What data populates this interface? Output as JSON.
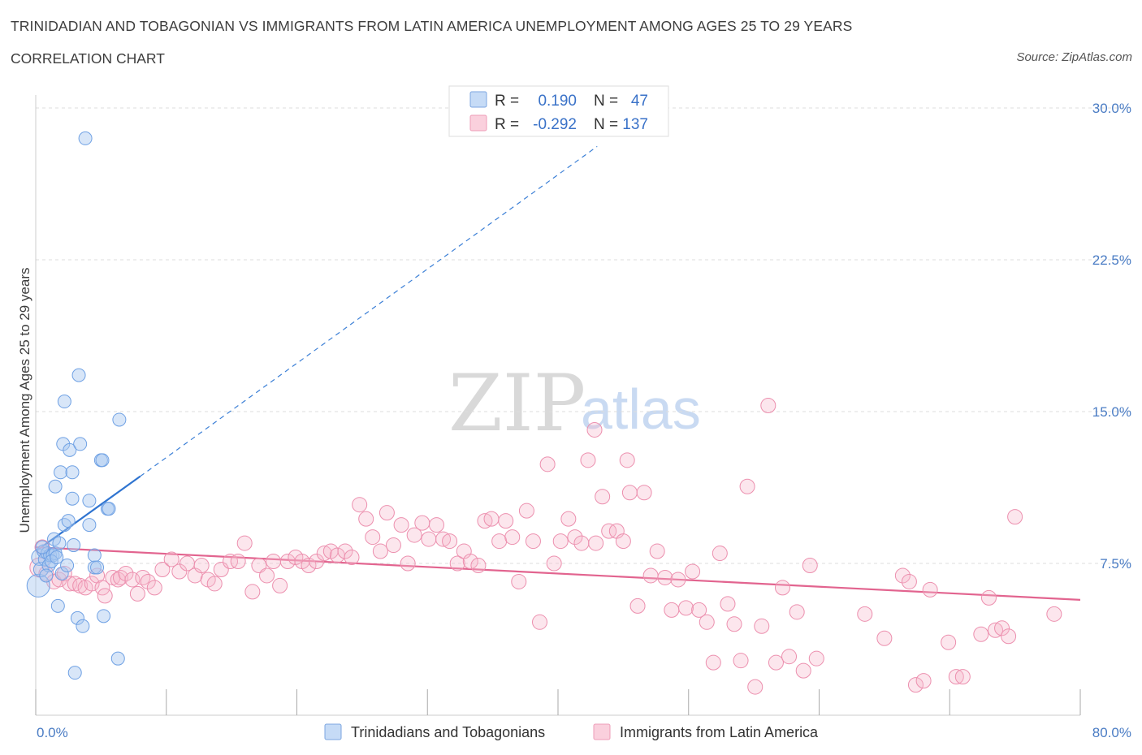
{
  "header": {
    "title": "TRINIDADIAN AND TOBAGONIAN VS IMMIGRANTS FROM LATIN AMERICA UNEMPLOYMENT AMONG AGES 25 TO 29 YEARS",
    "subtitle": "CORRELATION CHART",
    "source": "Source: ZipAtlas.com"
  },
  "watermark": {
    "zip": "ZIP",
    "atlas": "atlas"
  },
  "legend": {
    "rows": [
      {
        "r_label": "R =",
        "r_value": "0.190",
        "n_label": "N =",
        "n_value": "47",
        "color": "#a9c8f0"
      },
      {
        "r_label": "R =",
        "r_value": "-0.292",
        "n_label": "N =",
        "n_value": "137",
        "color": "#f6b8cb"
      }
    ]
  },
  "bottom_legend": [
    {
      "label": "Trinidadians and Tobagonians",
      "color": "#a9c8f0"
    },
    {
      "label": "Immigrants from Latin America",
      "color": "#f6b8cb"
    }
  ],
  "chart_data": {
    "type": "scatter",
    "title": "TRINIDADIAN AND TOBAGONIAN VS IMMIGRANTS FROM LATIN AMERICA UNEMPLOYMENT AMONG AGES 25 TO 29 YEARS",
    "xlabel": "",
    "ylabel": "Unemployment Among Ages 25 to 29 years",
    "xlim": [
      0,
      80
    ],
    "ylim": [
      0,
      30
    ],
    "x_tick_labels": [
      "0.0%",
      "80.0%"
    ],
    "y_ticks": [
      7.5,
      15.0,
      22.5,
      30.0
    ],
    "y_tick_labels": [
      "7.5%",
      "15.0%",
      "22.5%",
      "30.0%"
    ],
    "series": [
      {
        "name": "Trinidadians and Tobagonians",
        "color": "#6fa1e4",
        "trend": {
          "x": [
            0.0,
            8.0
          ],
          "y": [
            8.1,
            11.8
          ],
          "extended_to": [
            43.0,
            28.1
          ]
        },
        "points": [
          {
            "x": 0.2,
            "y": 6.4,
            "s": 14
          },
          {
            "x": 0.3,
            "y": 7.8,
            "s": 10
          },
          {
            "x": 0.4,
            "y": 7.2,
            "s": 9
          },
          {
            "x": 0.6,
            "y": 8.1,
            "s": 8
          },
          {
            "x": 0.7,
            "y": 7.7,
            "s": 8
          },
          {
            "x": 0.9,
            "y": 8.0,
            "s": 8
          },
          {
            "x": 1.0,
            "y": 7.4,
            "s": 8
          },
          {
            "x": 1.1,
            "y": 7.9,
            "s": 8
          },
          {
            "x": 1.3,
            "y": 7.9,
            "s": 8
          },
          {
            "x": 1.4,
            "y": 8.7,
            "s": 8
          },
          {
            "x": 1.5,
            "y": 8.0,
            "s": 8
          },
          {
            "x": 1.5,
            "y": 11.3,
            "s": 8
          },
          {
            "x": 1.7,
            "y": 5.4,
            "s": 8
          },
          {
            "x": 1.8,
            "y": 8.5,
            "s": 8
          },
          {
            "x": 1.9,
            "y": 12.0,
            "s": 8
          },
          {
            "x": 2.0,
            "y": 7.0,
            "s": 8
          },
          {
            "x": 2.1,
            "y": 13.4,
            "s": 8
          },
          {
            "x": 2.2,
            "y": 9.4,
            "s": 8
          },
          {
            "x": 2.2,
            "y": 15.5,
            "s": 8
          },
          {
            "x": 2.4,
            "y": 7.4,
            "s": 8
          },
          {
            "x": 2.5,
            "y": 9.6,
            "s": 8
          },
          {
            "x": 2.6,
            "y": 13.1,
            "s": 8
          },
          {
            "x": 2.8,
            "y": 10.7,
            "s": 8
          },
          {
            "x": 2.8,
            "y": 12.0,
            "s": 8
          },
          {
            "x": 2.9,
            "y": 8.4,
            "s": 8
          },
          {
            "x": 3.0,
            "y": 2.1,
            "s": 8
          },
          {
            "x": 3.2,
            "y": 4.8,
            "s": 8
          },
          {
            "x": 3.3,
            "y": 16.8,
            "s": 8
          },
          {
            "x": 3.4,
            "y": 13.4,
            "s": 8
          },
          {
            "x": 3.6,
            "y": 4.4,
            "s": 8
          },
          {
            "x": 4.1,
            "y": 9.4,
            "s": 8
          },
          {
            "x": 4.1,
            "y": 10.6,
            "s": 8
          },
          {
            "x": 4.5,
            "y": 7.3,
            "s": 8
          },
          {
            "x": 4.5,
            "y": 7.9,
            "s": 8
          },
          {
            "x": 4.7,
            "y": 7.3,
            "s": 8
          },
          {
            "x": 5.0,
            "y": 12.6,
            "s": 8
          },
          {
            "x": 5.1,
            "y": 12.6,
            "s": 8
          },
          {
            "x": 5.2,
            "y": 4.9,
            "s": 8
          },
          {
            "x": 5.5,
            "y": 10.2,
            "s": 8
          },
          {
            "x": 5.6,
            "y": 10.2,
            "s": 8
          },
          {
            "x": 6.3,
            "y": 2.8,
            "s": 8
          },
          {
            "x": 6.4,
            "y": 14.6,
            "s": 8
          },
          {
            "x": 3.8,
            "y": 28.5,
            "s": 8
          },
          {
            "x": 0.8,
            "y": 6.9,
            "s": 8
          },
          {
            "x": 1.2,
            "y": 7.6,
            "s": 8
          },
          {
            "x": 0.5,
            "y": 8.3,
            "s": 8
          },
          {
            "x": 1.6,
            "y": 7.8,
            "s": 8
          }
        ]
      },
      {
        "name": "Immigrants from Latin America",
        "color": "#ec8fae",
        "trend": {
          "x": [
            0.0,
            80.0
          ],
          "y": [
            8.3,
            5.7
          ]
        },
        "points": [
          {
            "x": 0.3,
            "y": 7.3,
            "s": 12
          },
          {
            "x": 0.5,
            "y": 8.3,
            "s": 9
          },
          {
            "x": 0.8,
            "y": 7.0,
            "s": 9
          },
          {
            "x": 1.4,
            "y": 6.6,
            "s": 9
          },
          {
            "x": 1.8,
            "y": 6.7,
            "s": 9
          },
          {
            "x": 2.2,
            "y": 7.0,
            "s": 9
          },
          {
            "x": 2.6,
            "y": 6.5,
            "s": 9
          },
          {
            "x": 3.0,
            "y": 6.5,
            "s": 9
          },
          {
            "x": 3.4,
            "y": 6.4,
            "s": 9
          },
          {
            "x": 3.8,
            "y": 6.3,
            "s": 9
          },
          {
            "x": 4.3,
            "y": 6.5,
            "s": 9
          },
          {
            "x": 4.7,
            "y": 6.9,
            "s": 9
          },
          {
            "x": 5.1,
            "y": 6.3,
            "s": 9
          },
          {
            "x": 5.3,
            "y": 5.9,
            "s": 9
          },
          {
            "x": 5.9,
            "y": 6.8,
            "s": 9
          },
          {
            "x": 6.3,
            "y": 6.7,
            "s": 9
          },
          {
            "x": 6.5,
            "y": 6.8,
            "s": 9
          },
          {
            "x": 6.9,
            "y": 7.0,
            "s": 9
          },
          {
            "x": 7.4,
            "y": 6.7,
            "s": 9
          },
          {
            "x": 7.8,
            "y": 6.0,
            "s": 9
          },
          {
            "x": 8.2,
            "y": 6.8,
            "s": 9
          },
          {
            "x": 8.6,
            "y": 6.6,
            "s": 9
          },
          {
            "x": 9.1,
            "y": 6.3,
            "s": 9
          },
          {
            "x": 9.7,
            "y": 7.2,
            "s": 9
          },
          {
            "x": 10.4,
            "y": 7.7,
            "s": 9
          },
          {
            "x": 11.0,
            "y": 7.1,
            "s": 9
          },
          {
            "x": 11.6,
            "y": 7.5,
            "s": 9
          },
          {
            "x": 12.2,
            "y": 6.9,
            "s": 9
          },
          {
            "x": 12.7,
            "y": 7.4,
            "s": 9
          },
          {
            "x": 13.2,
            "y": 6.7,
            "s": 9
          },
          {
            "x": 13.7,
            "y": 6.5,
            "s": 9
          },
          {
            "x": 14.2,
            "y": 7.2,
            "s": 9
          },
          {
            "x": 14.9,
            "y": 7.6,
            "s": 9
          },
          {
            "x": 15.5,
            "y": 7.6,
            "s": 9
          },
          {
            "x": 16.0,
            "y": 8.5,
            "s": 9
          },
          {
            "x": 16.6,
            "y": 6.1,
            "s": 9
          },
          {
            "x": 17.1,
            "y": 7.4,
            "s": 9
          },
          {
            "x": 17.7,
            "y": 6.9,
            "s": 9
          },
          {
            "x": 18.2,
            "y": 7.6,
            "s": 9
          },
          {
            "x": 18.7,
            "y": 6.4,
            "s": 9
          },
          {
            "x": 19.3,
            "y": 7.6,
            "s": 9
          },
          {
            "x": 19.9,
            "y": 7.8,
            "s": 9
          },
          {
            "x": 20.4,
            "y": 7.6,
            "s": 9
          },
          {
            "x": 20.9,
            "y": 7.4,
            "s": 9
          },
          {
            "x": 21.5,
            "y": 7.6,
            "s": 9
          },
          {
            "x": 22.1,
            "y": 8.0,
            "s": 9
          },
          {
            "x": 22.6,
            "y": 8.1,
            "s": 9
          },
          {
            "x": 23.1,
            "y": 7.9,
            "s": 9
          },
          {
            "x": 23.7,
            "y": 8.1,
            "s": 9
          },
          {
            "x": 24.2,
            "y": 7.8,
            "s": 9
          },
          {
            "x": 24.8,
            "y": 10.4,
            "s": 9
          },
          {
            "x": 25.3,
            "y": 9.7,
            "s": 9
          },
          {
            "x": 25.8,
            "y": 8.8,
            "s": 9
          },
          {
            "x": 26.4,
            "y": 8.1,
            "s": 9
          },
          {
            "x": 26.9,
            "y": 10.0,
            "s": 9
          },
          {
            "x": 27.4,
            "y": 8.4,
            "s": 9
          },
          {
            "x": 28.0,
            "y": 9.4,
            "s": 9
          },
          {
            "x": 28.5,
            "y": 7.5,
            "s": 9
          },
          {
            "x": 29.0,
            "y": 8.9,
            "s": 9
          },
          {
            "x": 29.6,
            "y": 9.5,
            "s": 9
          },
          {
            "x": 30.1,
            "y": 8.7,
            "s": 9
          },
          {
            "x": 30.7,
            "y": 9.4,
            "s": 9
          },
          {
            "x": 31.2,
            "y": 8.7,
            "s": 9
          },
          {
            "x": 31.7,
            "y": 8.6,
            "s": 9
          },
          {
            "x": 32.3,
            "y": 7.5,
            "s": 9
          },
          {
            "x": 32.8,
            "y": 8.1,
            "s": 9
          },
          {
            "x": 33.3,
            "y": 7.6,
            "s": 9
          },
          {
            "x": 33.9,
            "y": 7.4,
            "s": 9
          },
          {
            "x": 34.4,
            "y": 9.6,
            "s": 9
          },
          {
            "x": 34.9,
            "y": 9.7,
            "s": 9
          },
          {
            "x": 35.5,
            "y": 8.6,
            "s": 9
          },
          {
            "x": 36.0,
            "y": 9.6,
            "s": 9
          },
          {
            "x": 36.5,
            "y": 8.8,
            "s": 9
          },
          {
            "x": 37.0,
            "y": 6.6,
            "s": 9
          },
          {
            "x": 37.6,
            "y": 10.1,
            "s": 9
          },
          {
            "x": 38.1,
            "y": 8.6,
            "s": 9
          },
          {
            "x": 38.6,
            "y": 4.6,
            "s": 9
          },
          {
            "x": 39.2,
            "y": 12.4,
            "s": 9
          },
          {
            "x": 39.7,
            "y": 7.5,
            "s": 9
          },
          {
            "x": 40.2,
            "y": 8.6,
            "s": 9
          },
          {
            "x": 40.8,
            "y": 9.7,
            "s": 9
          },
          {
            "x": 41.3,
            "y": 8.8,
            "s": 9
          },
          {
            "x": 41.8,
            "y": 8.5,
            "s": 9
          },
          {
            "x": 42.3,
            "y": 12.6,
            "s": 9
          },
          {
            "x": 42.9,
            "y": 8.5,
            "s": 9
          },
          {
            "x": 43.4,
            "y": 10.8,
            "s": 9
          },
          {
            "x": 43.9,
            "y": 9.1,
            "s": 9
          },
          {
            "x": 44.5,
            "y": 9.1,
            "s": 9
          },
          {
            "x": 45.0,
            "y": 8.6,
            "s": 9
          },
          {
            "x": 45.5,
            "y": 11.0,
            "s": 9
          },
          {
            "x": 46.1,
            "y": 5.4,
            "s": 9
          },
          {
            "x": 46.6,
            "y": 11.0,
            "s": 9
          },
          {
            "x": 47.1,
            "y": 6.9,
            "s": 9
          },
          {
            "x": 47.6,
            "y": 8.1,
            "s": 9
          },
          {
            "x": 48.2,
            "y": 6.8,
            "s": 9
          },
          {
            "x": 48.7,
            "y": 5.2,
            "s": 9
          },
          {
            "x": 49.2,
            "y": 6.7,
            "s": 9
          },
          {
            "x": 49.8,
            "y": 5.3,
            "s": 9
          },
          {
            "x": 50.3,
            "y": 7.1,
            "s": 9
          },
          {
            "x": 50.8,
            "y": 5.2,
            "s": 9
          },
          {
            "x": 51.4,
            "y": 4.6,
            "s": 9
          },
          {
            "x": 51.9,
            "y": 2.6,
            "s": 9
          },
          {
            "x": 52.4,
            "y": 8.0,
            "s": 9
          },
          {
            "x": 53.0,
            "y": 5.5,
            "s": 9
          },
          {
            "x": 53.5,
            "y": 4.5,
            "s": 9
          },
          {
            "x": 54.0,
            "y": 2.7,
            "s": 9
          },
          {
            "x": 54.5,
            "y": 11.3,
            "s": 9
          },
          {
            "x": 55.1,
            "y": 1.4,
            "s": 9
          },
          {
            "x": 55.6,
            "y": 4.4,
            "s": 9
          },
          {
            "x": 56.1,
            "y": 15.3,
            "s": 9
          },
          {
            "x": 56.7,
            "y": 2.6,
            "s": 9
          },
          {
            "x": 57.2,
            "y": 6.3,
            "s": 9
          },
          {
            "x": 57.7,
            "y": 2.9,
            "s": 9
          },
          {
            "x": 58.3,
            "y": 5.1,
            "s": 9
          },
          {
            "x": 58.8,
            "y": 2.2,
            "s": 9
          },
          {
            "x": 59.3,
            "y": 7.4,
            "s": 9
          },
          {
            "x": 59.8,
            "y": 2.8,
            "s": 9
          },
          {
            "x": 42.8,
            "y": 14.1,
            "s": 9
          },
          {
            "x": 45.3,
            "y": 12.6,
            "s": 9
          },
          {
            "x": 63.5,
            "y": 5.0,
            "s": 9
          },
          {
            "x": 65.0,
            "y": 3.8,
            "s": 9
          },
          {
            "x": 66.4,
            "y": 6.9,
            "s": 9
          },
          {
            "x": 66.9,
            "y": 6.6,
            "s": 9
          },
          {
            "x": 67.4,
            "y": 1.5,
            "s": 9
          },
          {
            "x": 68.0,
            "y": 1.7,
            "s": 9
          },
          {
            "x": 68.5,
            "y": 6.2,
            "s": 9
          },
          {
            "x": 69.9,
            "y": 3.6,
            "s": 9
          },
          {
            "x": 70.5,
            "y": 1.9,
            "s": 9
          },
          {
            "x": 71.0,
            "y": 1.9,
            "s": 9
          },
          {
            "x": 72.4,
            "y": 4.0,
            "s": 9
          },
          {
            "x": 73.0,
            "y": 5.8,
            "s": 9
          },
          {
            "x": 73.5,
            "y": 4.2,
            "s": 9
          },
          {
            "x": 74.0,
            "y": 4.3,
            "s": 9
          },
          {
            "x": 74.5,
            "y": 3.9,
            "s": 9
          },
          {
            "x": 75.0,
            "y": 9.8,
            "s": 9
          },
          {
            "x": 78.0,
            "y": 5.0,
            "s": 9
          }
        ]
      }
    ]
  }
}
